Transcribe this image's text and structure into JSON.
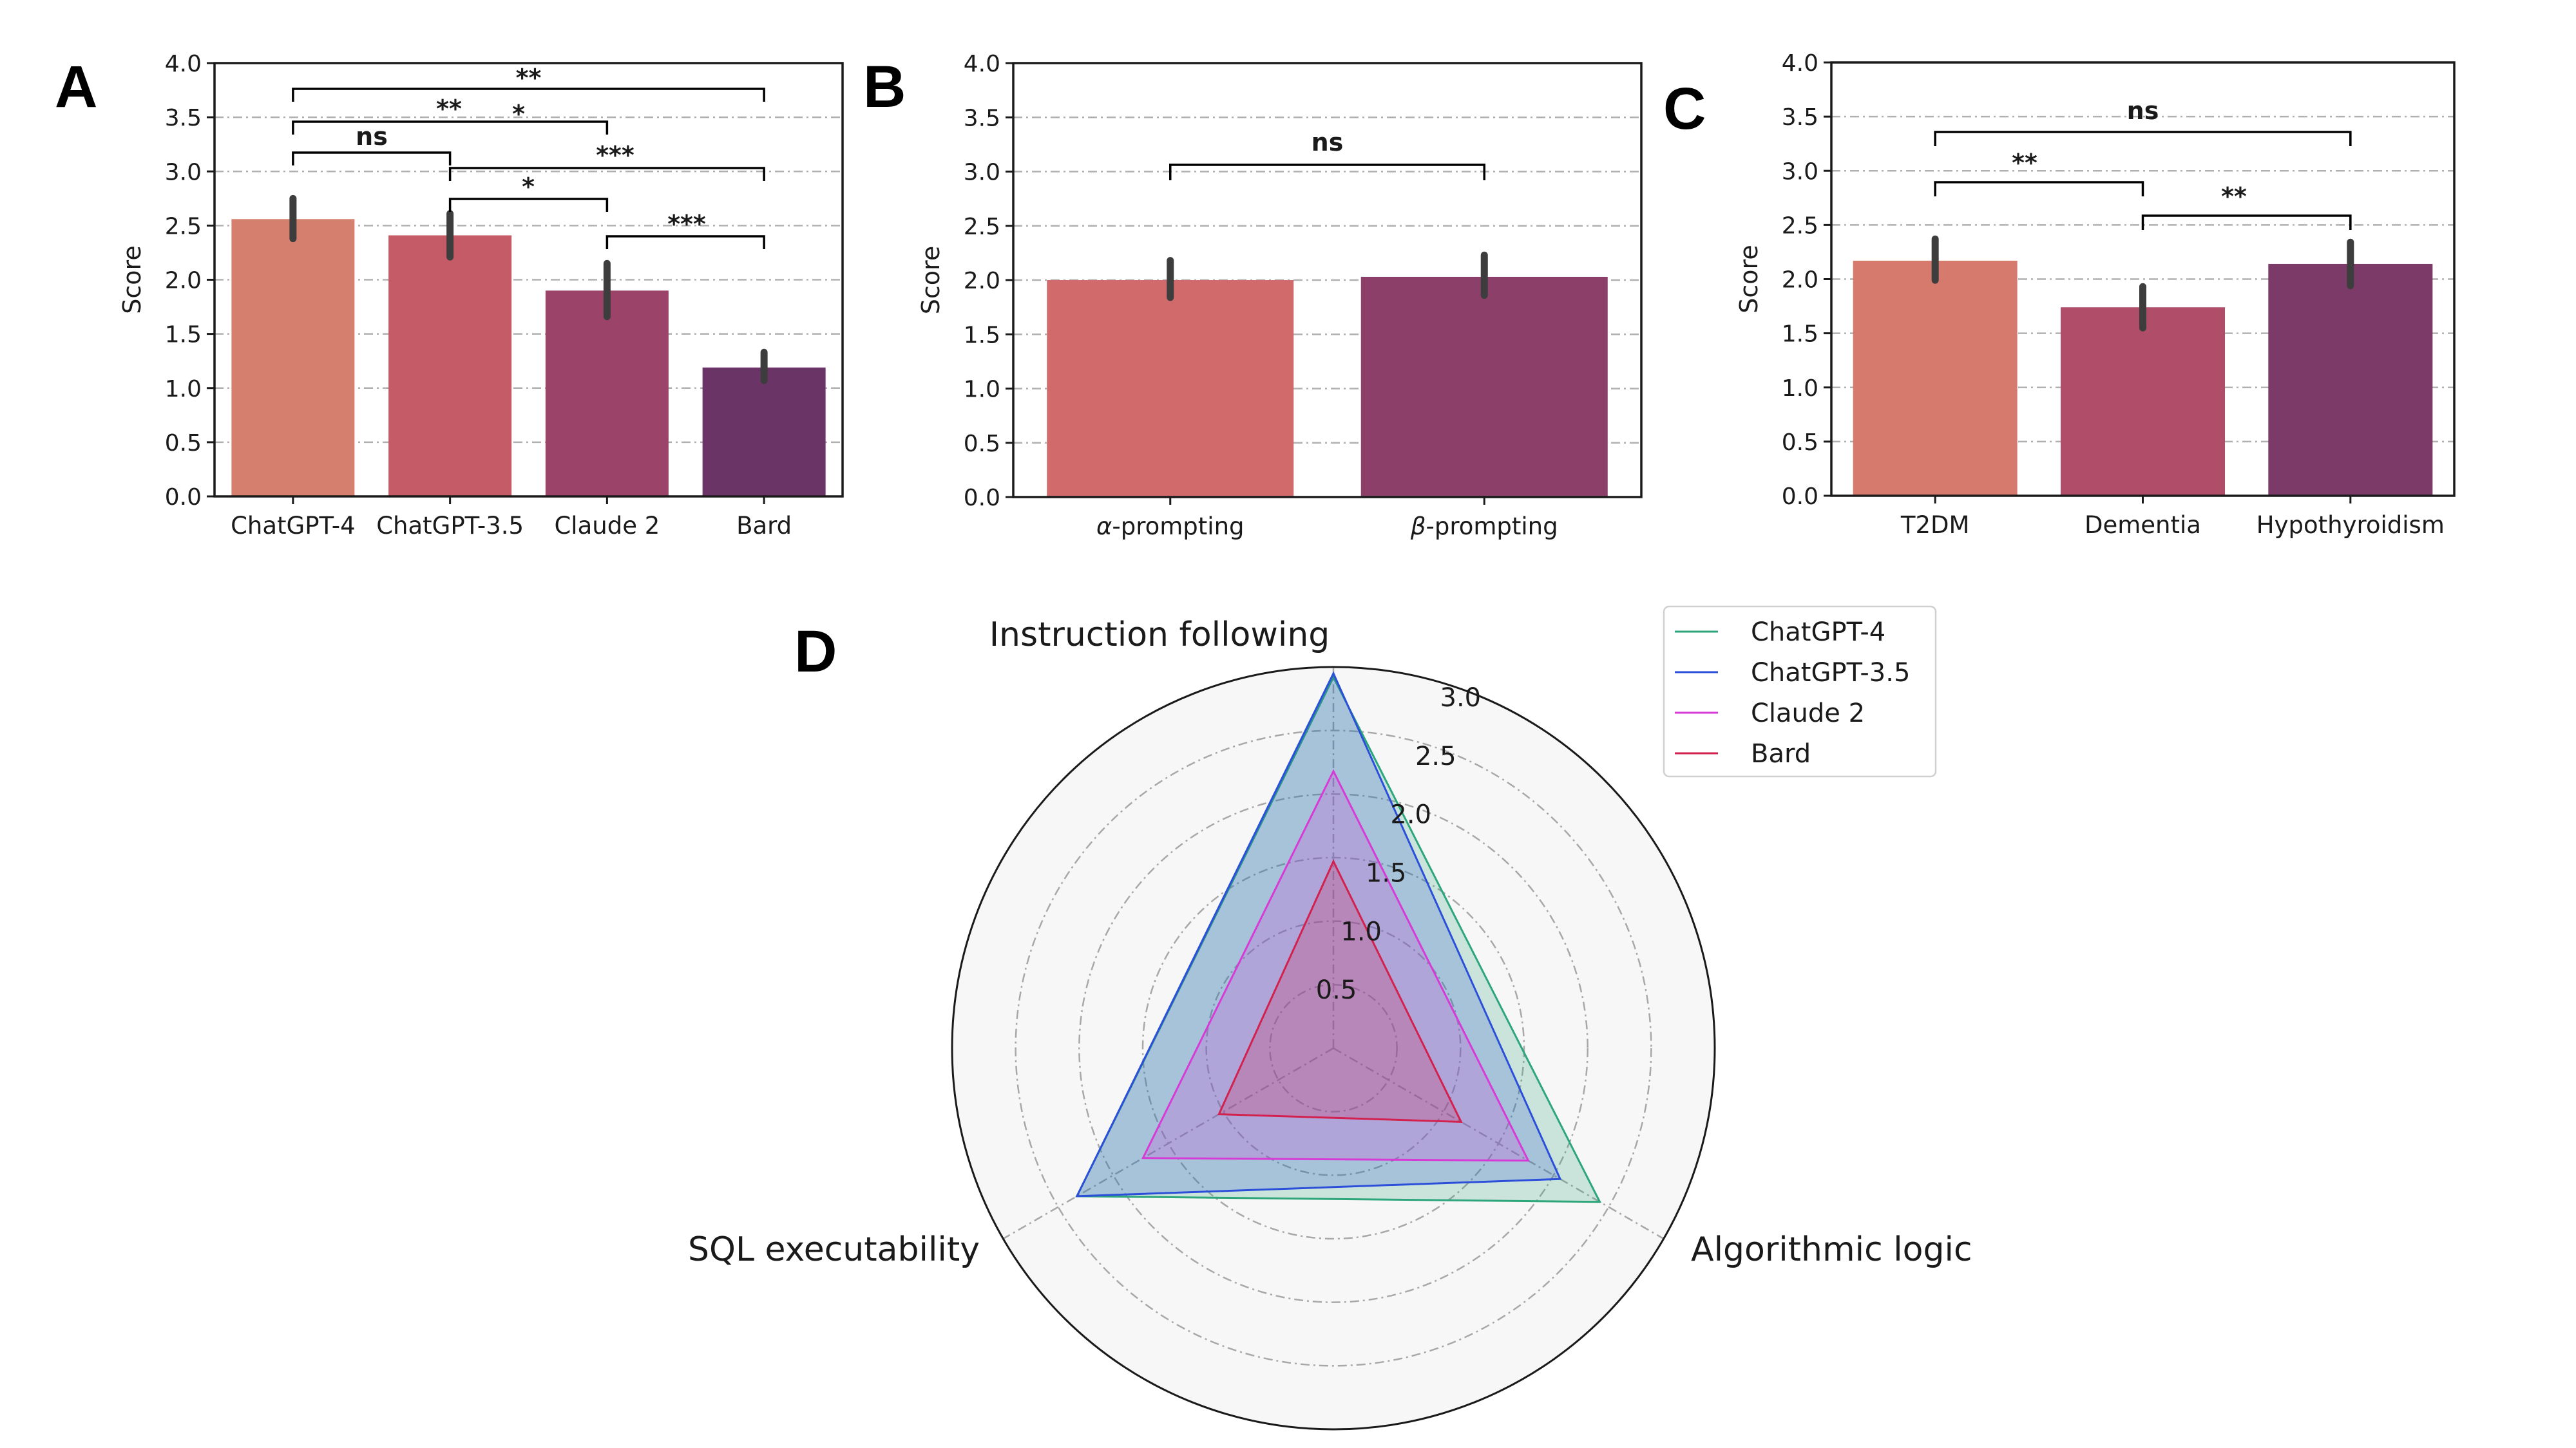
{
  "panels": {
    "A": {
      "letter": "A",
      "ylabel": "Score",
      "ylim": [
        0,
        4
      ],
      "yticks": [
        "0.0",
        "0.5",
        "1.0",
        "1.5",
        "2.0",
        "2.5",
        "3.0",
        "3.5",
        "4.0"
      ],
      "categories": [
        "ChatGPT-4",
        "ChatGPT-3.5",
        "Claude 2",
        "Bard"
      ],
      "values": [
        2.56,
        2.41,
        1.9,
        1.19
      ],
      "ci_low": [
        2.38,
        2.21,
        1.66,
        1.07
      ],
      "ci_high": [
        2.75,
        2.61,
        2.15,
        1.33
      ],
      "colors": [
        "#d5806f",
        "#c45b66",
        "#9c4369",
        "#6b3466"
      ],
      "brackets": [
        {
          "from": 0,
          "to": 3,
          "label": "**"
        },
        {
          "from": 0,
          "to": 2,
          "label": "*"
        },
        {
          "from": 1,
          "to": 3,
          "label": "***"
        },
        {
          "from": 0,
          "to": 1,
          "label": "ns"
        },
        {
          "from": 1,
          "to": 2,
          "label": "*"
        },
        {
          "from": 2,
          "to": 3,
          "label": "***"
        }
      ],
      "extra_labels": [
        {
          "text": "**",
          "x": 1
        }
      ]
    },
    "B": {
      "letter": "B",
      "ylabel": "Score",
      "ylim": [
        0,
        4
      ],
      "yticks": [
        "0.0",
        "0.5",
        "1.0",
        "1.5",
        "2.0",
        "2.5",
        "3.0",
        "3.5",
        "4.0"
      ],
      "categories": [
        {
          "symbol": "α",
          "rest": "-prompting"
        },
        {
          "symbol": "β",
          "rest": "-prompting"
        }
      ],
      "values": [
        2.0,
        2.03
      ],
      "ci_low": [
        1.84,
        1.86
      ],
      "ci_high": [
        2.18,
        2.23
      ],
      "colors": [
        "#d06a6b",
        "#8c4069"
      ],
      "brackets": [
        {
          "from": 0,
          "to": 1,
          "label": "ns"
        }
      ]
    },
    "C": {
      "letter": "C",
      "ylabel": "Score",
      "ylim": [
        0,
        4
      ],
      "yticks": [
        "0.0",
        "0.5",
        "1.0",
        "1.5",
        "2.0",
        "2.5",
        "3.0",
        "3.5",
        "4.0"
      ],
      "categories": [
        "T2DM",
        "Dementia",
        "Hypothyroidism"
      ],
      "values": [
        2.17,
        1.74,
        2.14
      ],
      "ci_low": [
        1.99,
        1.55,
        1.94
      ],
      "ci_high": [
        2.37,
        1.93,
        2.34
      ],
      "colors": [
        "#d57a6c",
        "#b04e6a",
        "#7b3a67"
      ],
      "brackets": [
        {
          "from": 0,
          "to": 2,
          "label": "ns"
        },
        {
          "from": 0,
          "to": 1,
          "label": "**"
        },
        {
          "from": 1,
          "to": 2,
          "label": "**"
        }
      ]
    }
  },
  "radar": {
    "letter": "D",
    "axes": [
      "Instruction following",
      "Algorithmic logic",
      "SQL executability"
    ],
    "rmax": 3.0,
    "rticks": [
      "0.5",
      "1.0",
      "1.5",
      "2.0",
      "2.5",
      "3.0"
    ],
    "series": [
      {
        "name": "ChatGPT-4",
        "color": "#2ca67a",
        "values": [
          2.92,
          2.42,
          2.33
        ]
      },
      {
        "name": "ChatGPT-3.5",
        "color": "#2b4fd8",
        "values": [
          2.95,
          2.06,
          2.33
        ]
      },
      {
        "name": "Claude 2",
        "color": "#d63bd6",
        "values": [
          2.18,
          1.77,
          1.73
        ]
      },
      {
        "name": "Bard",
        "color": "#d2214e",
        "values": [
          1.47,
          1.16,
          1.04
        ]
      }
    ]
  },
  "chart_data": [
    {
      "type": "bar",
      "title": "",
      "ylabel": "Score",
      "categories": [
        "ChatGPT-4",
        "ChatGPT-3.5",
        "Claude 2",
        "Bard"
      ],
      "values": [
        2.56,
        2.41,
        1.9,
        1.19
      ],
      "ylim": [
        0,
        4
      ],
      "annotations": [
        "**",
        "**",
        "*",
        "ns",
        "***",
        "*",
        "***"
      ]
    },
    {
      "type": "bar",
      "title": "",
      "ylabel": "Score",
      "categories": [
        "α-prompting",
        "β-prompting"
      ],
      "values": [
        2.0,
        2.03
      ],
      "ylim": [
        0,
        4
      ],
      "annotations": [
        "ns"
      ]
    },
    {
      "type": "bar",
      "title": "",
      "ylabel": "Score",
      "categories": [
        "T2DM",
        "Dementia",
        "Hypothyroidism"
      ],
      "values": [
        2.17,
        1.74,
        2.14
      ],
      "ylim": [
        0,
        4
      ],
      "annotations": [
        "ns",
        "**",
        "**"
      ]
    },
    {
      "type": "radar",
      "title": "",
      "categories": [
        "Instruction following",
        "Algorithmic logic",
        "SQL executability"
      ],
      "rlim": [
        0,
        3.0
      ],
      "series": [
        {
          "name": "ChatGPT-4",
          "values": [
            2.92,
            2.42,
            2.33
          ]
        },
        {
          "name": "ChatGPT-3.5",
          "values": [
            2.95,
            2.06,
            2.33
          ]
        },
        {
          "name": "Claude 2",
          "values": [
            2.18,
            1.77,
            1.73
          ]
        },
        {
          "name": "Bard",
          "values": [
            1.47,
            1.16,
            1.04
          ]
        }
      ]
    }
  ]
}
